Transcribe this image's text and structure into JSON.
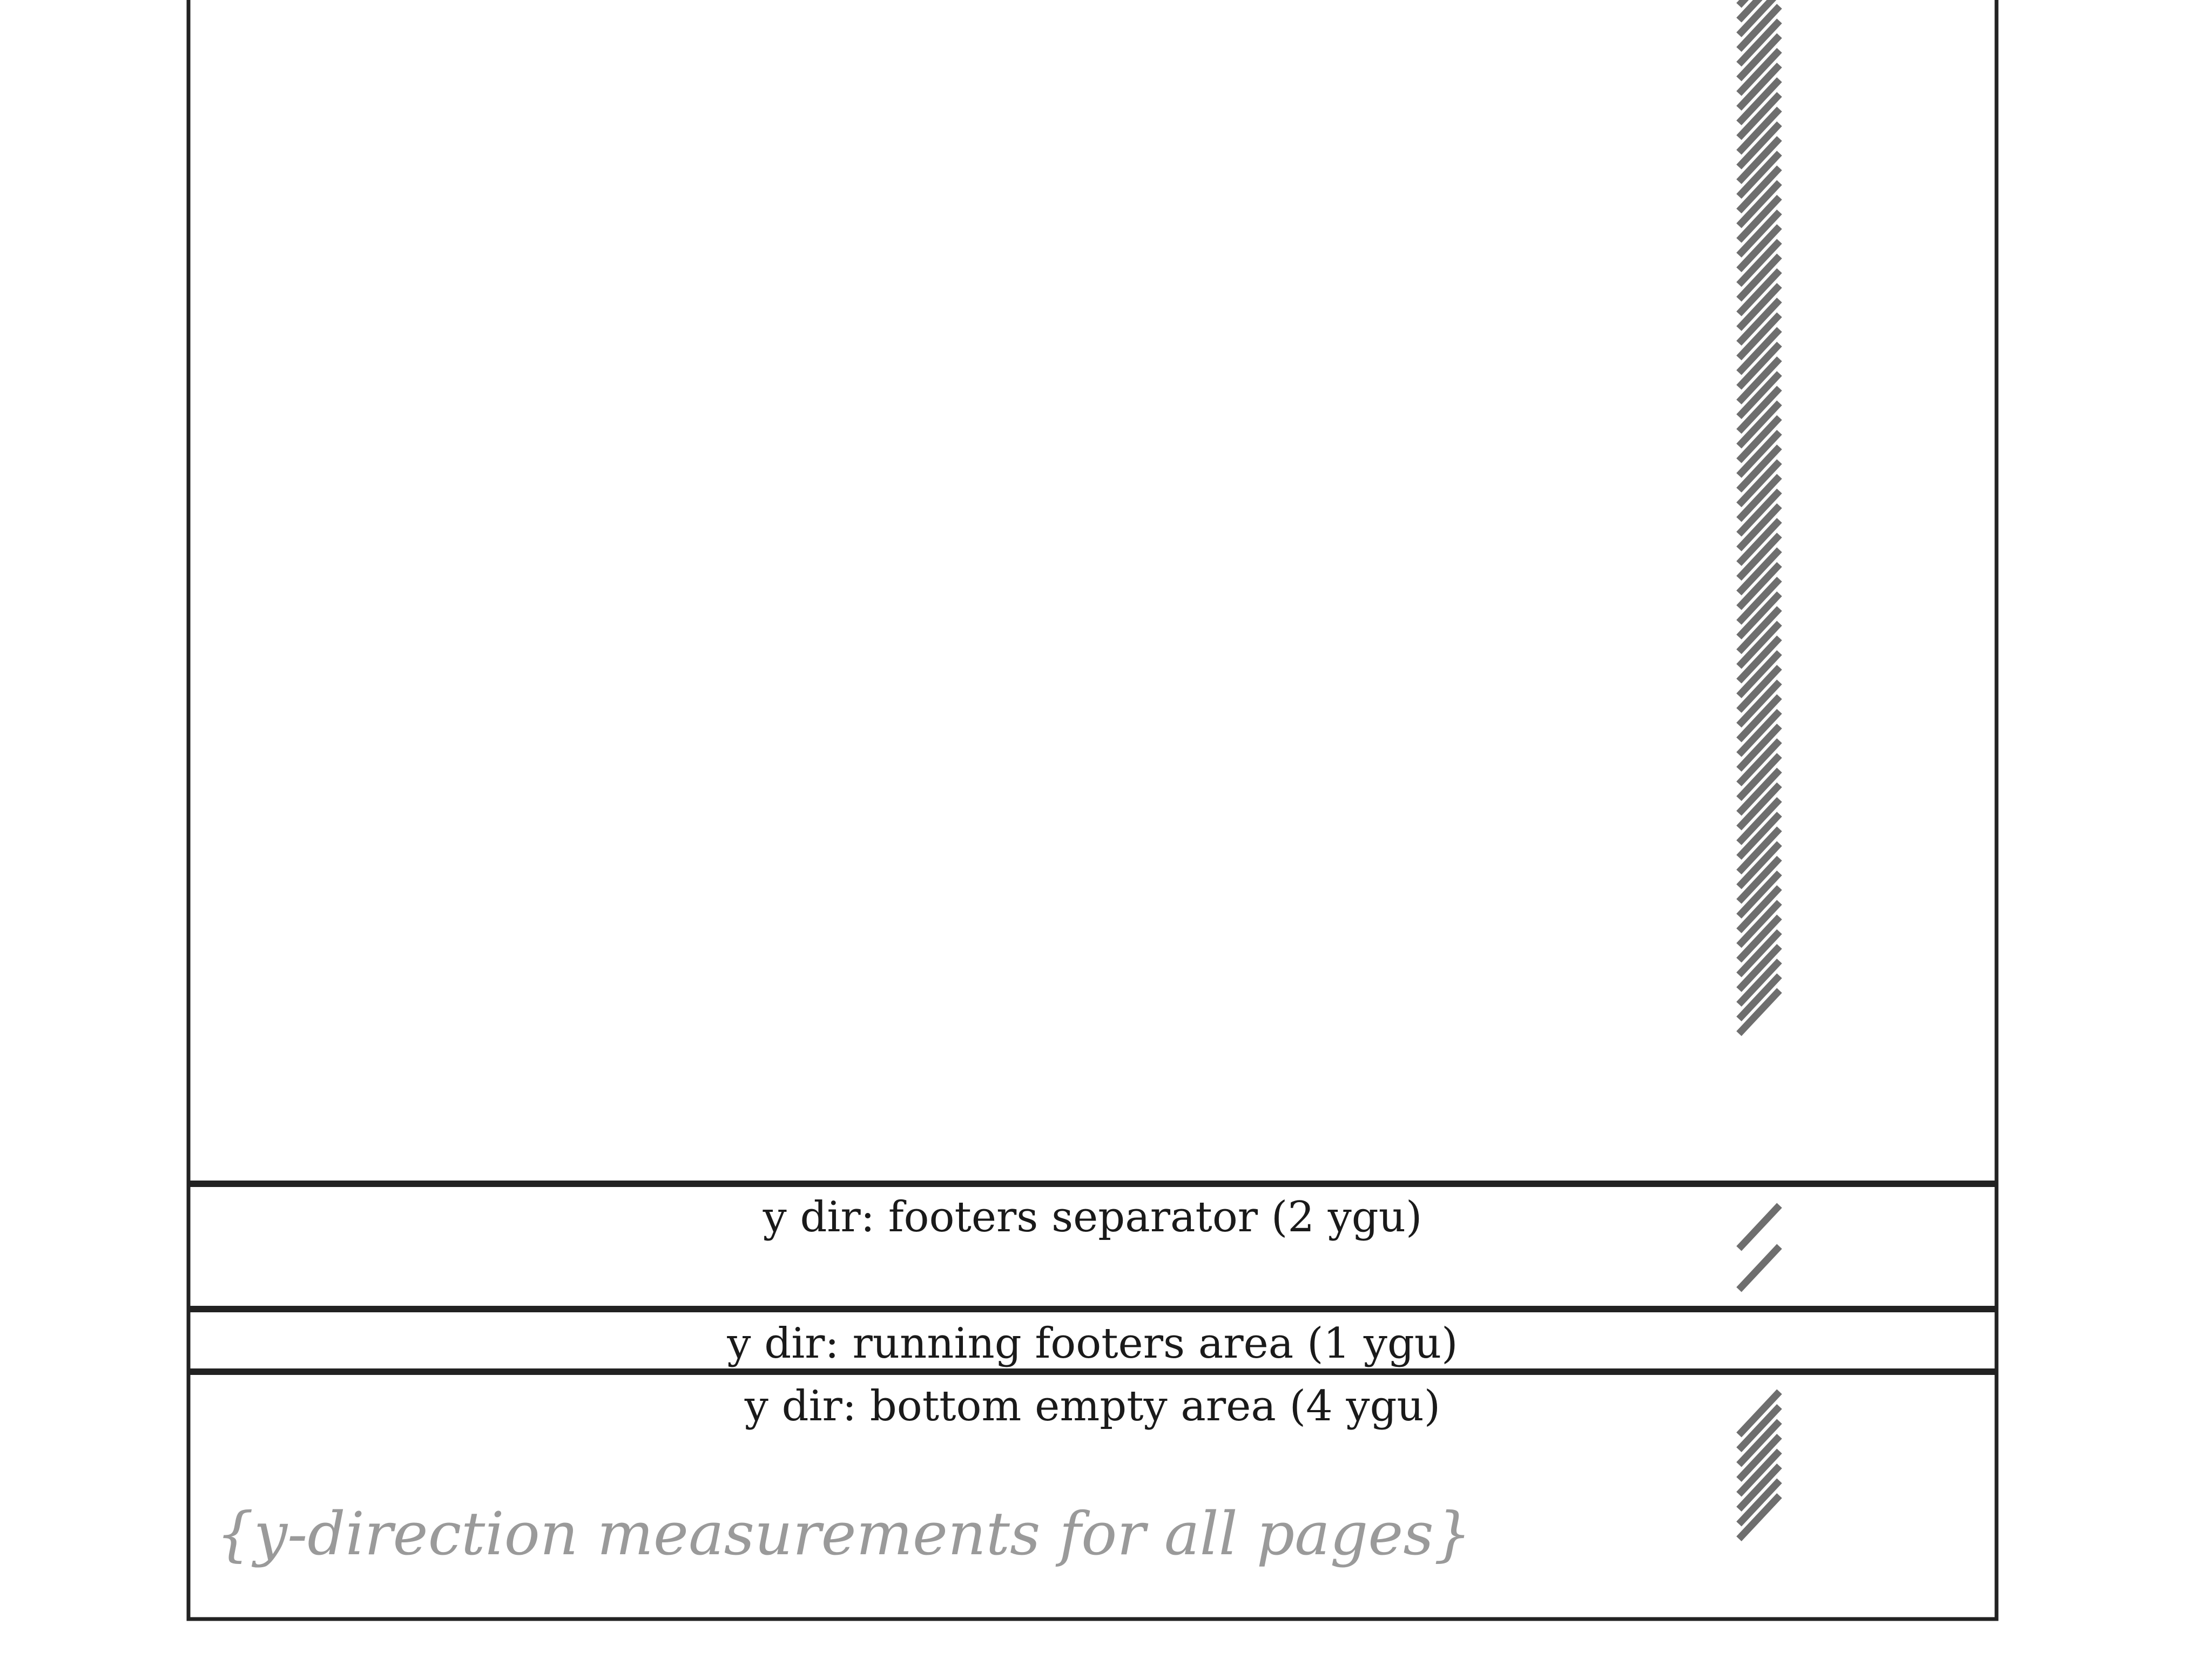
{
  "diagram": {
    "sections": [
      {
        "id": "footers-separator",
        "label": "y dir: footers separator (2 ygu)"
      },
      {
        "id": "running-footers",
        "label": "y dir: running footers area (1 ygu)"
      },
      {
        "id": "bottom-empty",
        "label": "y dir: bottom empty area (4 ygu)"
      }
    ],
    "caption": "{y-direction measurements for all pages}"
  }
}
